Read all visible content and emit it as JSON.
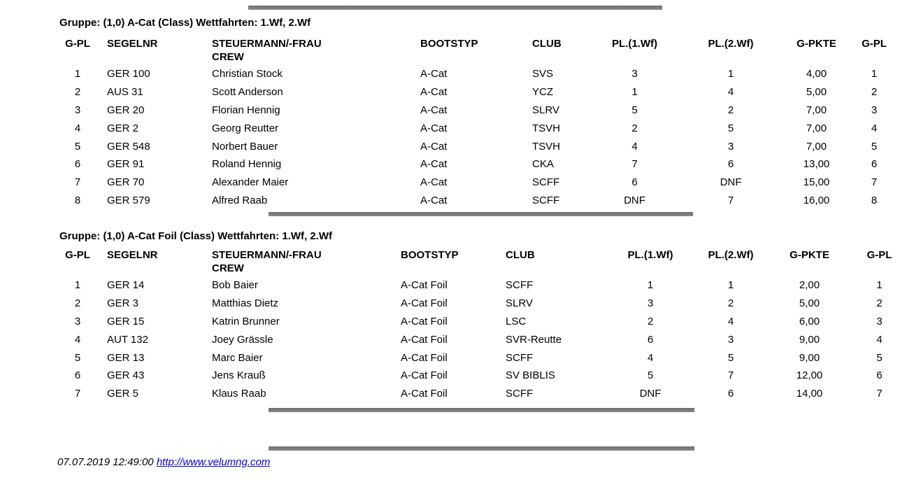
{
  "colors": {
    "divider": "#7a7a7a",
    "link": "#0000EE",
    "text": "#000000"
  },
  "tables": [
    {
      "group_title": "Gruppe: (1,0) A-Cat (Class) Wettfahrten: 1.Wf, 2.Wf",
      "columns": [
        {
          "label": "G-PL"
        },
        {
          "label": "SEGELNR"
        },
        {
          "label": "STEUERMANN/-FRAU",
          "sublabel": "CREW"
        },
        {
          "label": "BOOTSTYP"
        },
        {
          "label": "CLUB"
        },
        {
          "label": "PL.(1.Wf)"
        },
        {
          "label": "PL.(2.Wf)"
        },
        {
          "label": "G-PKTE"
        },
        {
          "label": "G-PL"
        }
      ],
      "rows": [
        [
          "1",
          "GER 100",
          "Christian Stock",
          "A-Cat",
          "SVS",
          "3",
          "1",
          "4,00",
          "1"
        ],
        [
          "2",
          "AUS 31",
          "Scott Anderson",
          "A-Cat",
          "YCZ",
          "1",
          "4",
          "5,00",
          "2"
        ],
        [
          "3",
          "GER 20",
          "Florian Hennig",
          "A-Cat",
          "SLRV",
          "5",
          "2",
          "7,00",
          "3"
        ],
        [
          "4",
          "GER 2",
          "Georg Reutter",
          "A-Cat",
          "TSVH",
          "2",
          "5",
          "7,00",
          "4"
        ],
        [
          "5",
          "GER 548",
          "Norbert Bauer",
          "A-Cat",
          "TSVH",
          "4",
          "3",
          "7,00",
          "5"
        ],
        [
          "6",
          "GER 91",
          "Roland Hennig",
          "A-Cat",
          "CKA",
          "7",
          "6",
          "13,00",
          "6"
        ],
        [
          "7",
          "GER 70",
          "Alexander Maier",
          "A-Cat",
          "SCFF",
          "6",
          "DNF",
          "15,00",
          "7"
        ],
        [
          "8",
          "GER 579",
          "Alfred Raab",
          "A-Cat",
          "SCFF",
          "DNF",
          "7",
          "16,00",
          "8"
        ]
      ]
    },
    {
      "group_title": "Gruppe: (1,0) A-Cat Foil (Class) Wettfahrten: 1.Wf, 2.Wf",
      "columns": [
        {
          "label": "G-PL"
        },
        {
          "label": "SEGELNR"
        },
        {
          "label": "STEUERMANN/-FRAU",
          "sublabel": "CREW"
        },
        {
          "label": "BOOTSTYP"
        },
        {
          "label": "CLUB"
        },
        {
          "label": "PL.(1.Wf)"
        },
        {
          "label": "PL.(2.Wf)"
        },
        {
          "label": "G-PKTE"
        },
        {
          "label": "G-PL"
        }
      ],
      "rows": [
        [
          "1",
          "GER 14",
          "Bob Baier",
          "A-Cat Foil",
          "SCFF",
          "1",
          "1",
          "2,00",
          "1"
        ],
        [
          "2",
          "GER 3",
          "Matthias Dietz",
          "A-Cat Foil",
          "SLRV",
          "3",
          "2",
          "5,00",
          "2"
        ],
        [
          "3",
          "GER 15",
          "Katrin Brunner",
          "A-Cat Foil",
          "LSC",
          "2",
          "4",
          "6,00",
          "3"
        ],
        [
          "4",
          "AUT 132",
          "Joey Grässle",
          "A-Cat Foil",
          "SVR-Reutte",
          "6",
          "3",
          "9,00",
          "4"
        ],
        [
          "5",
          "GER 13",
          "Marc Baier",
          "A-Cat Foil",
          "SCFF",
          "4",
          "5",
          "9,00",
          "5"
        ],
        [
          "6",
          "GER 43",
          "Jens Krauß",
          "A-Cat Foil",
          "SV BIBLIS",
          "5",
          "7",
          "12,00",
          "6"
        ],
        [
          "7",
          "GER 5",
          "Klaus Raab",
          "A-Cat Foil",
          "SCFF",
          "DNF",
          "6",
          "14,00",
          "7"
        ]
      ]
    }
  ],
  "footer": {
    "timestamp": "07.07.2019 12:49:00",
    "link": "http://www.velumng.com"
  }
}
